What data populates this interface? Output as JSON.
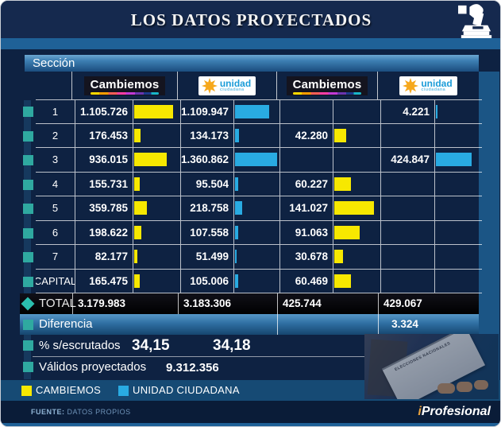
{
  "title": "LOS DATOS PROYECTADOS",
  "section_label": "Sección",
  "headers": {
    "cambiemos": "Cambiemos",
    "unidad_line1": "unidad",
    "unidad_line2": "ciudadana"
  },
  "chart_data": {
    "type": "table",
    "title": "LOS DATOS PROYECTADOS",
    "row_header": "Sección",
    "columns": [
      "Cambiemos",
      "Unidad Ciudadana",
      "Cambiemos",
      "Unidad Ciudadana"
    ],
    "bar_note": "each numeric column also shown as horizontal bar, independently scaled to column max",
    "column_max": [
      1105726,
      1360862,
      141027,
      424847
    ],
    "rows": [
      {
        "label": "1",
        "values": [
          "1.105.726",
          "1.109.947",
          "",
          "4.221"
        ],
        "bars": [
          1105726,
          1109947,
          null,
          4221
        ]
      },
      {
        "label": "2",
        "values": [
          "176.453",
          "134.173",
          "42.280",
          ""
        ],
        "bars": [
          176453,
          134173,
          42280,
          null
        ]
      },
      {
        "label": "3",
        "values": [
          "936.015",
          "1.360.862",
          "",
          "424.847"
        ],
        "bars": [
          936015,
          1360862,
          null,
          424847
        ]
      },
      {
        "label": "4",
        "values": [
          "155.731",
          "95.504",
          "60.227",
          ""
        ],
        "bars": [
          155731,
          95504,
          60227,
          null
        ]
      },
      {
        "label": "5",
        "values": [
          "359.785",
          "218.758",
          "141.027",
          ""
        ],
        "bars": [
          359785,
          218758,
          141027,
          null
        ]
      },
      {
        "label": "6",
        "values": [
          "198.622",
          "107.558",
          "91.063",
          ""
        ],
        "bars": [
          198622,
          107558,
          91063,
          null
        ]
      },
      {
        "label": "7",
        "values": [
          "82.177",
          "51.499",
          "30.678",
          ""
        ],
        "bars": [
          82177,
          51499,
          30678,
          null
        ]
      },
      {
        "label": "CAPITAL",
        "values": [
          "165.475",
          "105.006",
          "60.469",
          ""
        ],
        "bars": [
          165475,
          105006,
          60469,
          null
        ]
      }
    ],
    "total": {
      "label": "TOTAL",
      "values": [
        "3.179.983",
        "3.183.306",
        "425.744",
        "429.067"
      ]
    },
    "diferencia": {
      "label": "Diferencia",
      "values": [
        "",
        "",
        "",
        "3.324"
      ]
    },
    "escrutados": {
      "label": "% s/escrutados",
      "values": [
        "34,15",
        "34,18"
      ]
    },
    "validos": {
      "label": "Válidos proyectados",
      "value": "9.312.356"
    }
  },
  "legend": [
    {
      "label": "CAMBIEMOS",
      "color": "#f7e800"
    },
    {
      "label": "UNIDAD CIUDADANA",
      "color": "#29abe2"
    }
  ],
  "photo_caption": "ELECCIONES NACIONALES",
  "footer": {
    "source_label": "FUENTE:",
    "source_value": " DATOS PROPIOS",
    "brand_prefix": "i",
    "brand_name": "Profesional"
  },
  "colors": {
    "bar_yellow": "#f7e800",
    "bar_blue": "#29abe2",
    "accent_teal": "#2fa9a0"
  }
}
